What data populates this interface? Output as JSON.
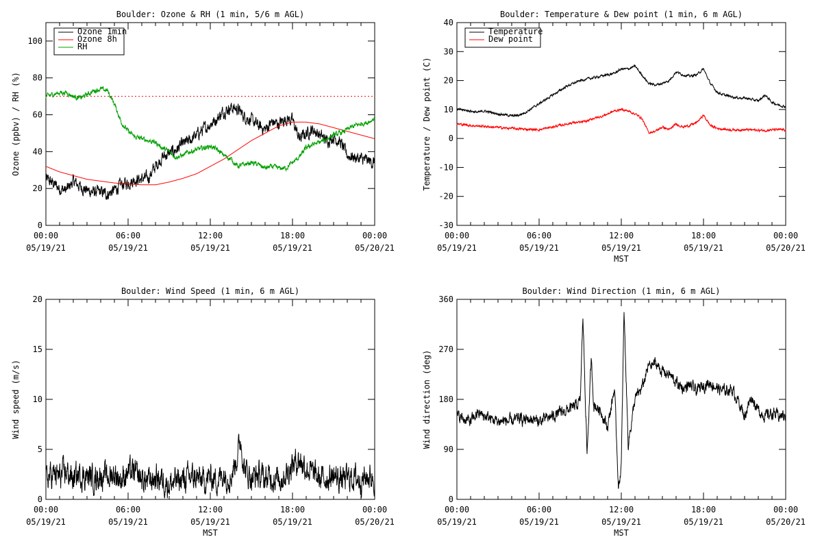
{
  "chart_data": [
    {
      "type": "line",
      "title": "Boulder: Ozone & RH (1 min, 5/6 m AGL)",
      "xlabel": "",
      "ylabel": "Ozone (ppbv) / RH (%)",
      "xlim": [
        0,
        24
      ],
      "ylim": [
        0,
        110
      ],
      "yticks": [
        0,
        20,
        40,
        60,
        80,
        100
      ],
      "xtick_hours": [
        0,
        6,
        12,
        18,
        24
      ],
      "xtick_labels": [
        [
          "00:00",
          "05/19/21"
        ],
        [
          "06:00",
          "05/19/21"
        ],
        [
          "12:00",
          "05/19/21"
        ],
        [
          "18:00",
          "05/19/21"
        ],
        [
          "00:00",
          "05/20/21"
        ]
      ],
      "legend_position": "top-left",
      "reference_line": {
        "y": 70,
        "color": "#ff0000",
        "style": "dotted"
      },
      "series": [
        {
          "name": "Ozone 1min",
          "color": "#000000",
          "noise": 2.5,
          "x": [
            0,
            0.5,
            1,
            1.5,
            2,
            2.5,
            3,
            3.5,
            4,
            4.5,
            5,
            5.5,
            6,
            6.5,
            7,
            7.5,
            8,
            8.5,
            9,
            9.5,
            10,
            10.5,
            11,
            11.5,
            12,
            12.5,
            13,
            13.5,
            14,
            14.5,
            15,
            15.5,
            16,
            16.5,
            17,
            17.5,
            18,
            18.5,
            19,
            19.5,
            20,
            20.5,
            21,
            21.5,
            22,
            22.5,
            23,
            23.5,
            24
          ],
          "values": [
            25,
            23,
            20,
            19,
            24,
            21,
            19,
            18,
            18,
            17,
            19,
            22,
            23,
            25,
            25,
            26,
            32,
            37,
            39,
            41,
            44,
            46,
            49,
            52,
            55,
            58,
            62,
            64,
            63,
            59,
            57,
            54,
            52,
            56,
            55,
            58,
            57,
            47,
            50,
            52,
            49,
            46,
            48,
            45,
            38,
            37,
            36,
            35,
            34
          ]
        },
        {
          "name": "Ozone 8h",
          "color": "#ff0000",
          "noise": 0,
          "x": [
            0,
            1,
            2,
            3,
            4,
            5,
            6,
            7,
            8,
            9,
            10,
            11,
            12,
            13,
            14,
            15,
            16,
            17,
            18,
            19,
            20,
            21,
            22,
            23,
            24
          ],
          "values": [
            32,
            29,
            27,
            25,
            24,
            23,
            22.5,
            22,
            22,
            23.5,
            25.5,
            28,
            32,
            36,
            41,
            46,
            50,
            54,
            56,
            56,
            55,
            53,
            51,
            49,
            47
          ]
        },
        {
          "name": "RH",
          "color": "#00a000",
          "noise": 1,
          "x": [
            0,
            0.5,
            1,
            1.5,
            2,
            2.5,
            3,
            3.5,
            4,
            4.5,
            5,
            5.5,
            6,
            6.5,
            7,
            7.5,
            8,
            8.5,
            9,
            9.5,
            10,
            10.5,
            11,
            11.5,
            12,
            12.5,
            13,
            13.5,
            14,
            14.5,
            15,
            15.5,
            16,
            16.5,
            17,
            17.5,
            18,
            18.5,
            19,
            19.5,
            20,
            20.5,
            21,
            21.5,
            22,
            22.5,
            23,
            23.5,
            24
          ],
          "values": [
            70,
            71,
            72,
            72,
            70,
            69,
            71,
            73,
            74,
            73,
            66,
            56,
            51,
            48,
            47,
            46,
            45,
            42,
            40,
            37,
            38,
            40,
            41,
            42,
            43,
            41,
            38,
            36,
            32,
            33,
            34,
            33,
            31,
            32,
            31,
            31,
            34,
            37,
            42,
            44,
            45,
            47,
            49,
            50,
            52,
            54,
            55,
            56,
            58
          ]
        }
      ]
    },
    {
      "type": "line",
      "title": "Boulder: Temperature & Dew point (1 min, 6 m AGL)",
      "xlabel": "MST",
      "ylabel": "Temperature / Dew point (C)",
      "xlim": [
        0,
        24
      ],
      "ylim": [
        -30,
        40
      ],
      "yticks": [
        -30,
        -20,
        -10,
        0,
        10,
        20,
        30,
        40
      ],
      "xtick_hours": [
        0,
        6,
        12,
        18,
        24
      ],
      "xtick_labels": [
        [
          "00:00",
          "05/19/21"
        ],
        [
          "06:00",
          "05/19/21"
        ],
        [
          "12:00",
          "05/19/21"
        ],
        [
          "18:00",
          "05/19/21"
        ],
        [
          "00:00",
          "05/20/21"
        ]
      ],
      "legend_position": "top-left",
      "series": [
        {
          "name": "Temperature",
          "color": "#000000",
          "noise": 0.3,
          "x": [
            0,
            0.5,
            1,
            1.5,
            2,
            2.5,
            3,
            3.5,
            4,
            4.5,
            5,
            5.5,
            6,
            6.5,
            7,
            7.5,
            8,
            8.5,
            9,
            9.5,
            10,
            10.5,
            11,
            11.5,
            12,
            12.5,
            13,
            13.5,
            14,
            14.5,
            15,
            15.5,
            16,
            16.5,
            17,
            17.5,
            18,
            18.5,
            19,
            19.5,
            20,
            20.5,
            21,
            21.5,
            22,
            22.5,
            23,
            23.5,
            24
          ],
          "values": [
            10,
            9.8,
            9.5,
            9,
            9.5,
            9,
            8.5,
            8.2,
            7.8,
            8,
            9,
            10.5,
            12,
            13.5,
            15,
            16.5,
            18,
            19,
            20,
            20.5,
            21,
            21.5,
            22,
            22.5,
            24,
            24,
            25,
            22,
            19,
            18.5,
            19,
            20,
            23,
            22,
            21.5,
            22,
            24,
            19,
            16,
            15,
            14.5,
            14,
            14,
            13.5,
            13,
            15,
            12.5,
            11.5,
            11
          ]
        },
        {
          "name": "Dew point",
          "color": "#ff0000",
          "noise": 0.3,
          "x": [
            0,
            0.5,
            1,
            1.5,
            2,
            2.5,
            3,
            3.5,
            4,
            4.5,
            5,
            5.5,
            6,
            6.5,
            7,
            7.5,
            8,
            8.5,
            9,
            9.5,
            10,
            10.5,
            11,
            11.5,
            12,
            12.5,
            13,
            13.5,
            14,
            14.5,
            15,
            15.5,
            16,
            16.5,
            17,
            17.5,
            18,
            18.5,
            19,
            19.5,
            20,
            20.5,
            21,
            21.5,
            22,
            22.5,
            23,
            23.5,
            24
          ],
          "values": [
            5,
            4.8,
            4.5,
            4.3,
            4.2,
            4,
            3.8,
            3.6,
            3.5,
            3.3,
            3.2,
            3.1,
            3,
            3.5,
            4,
            4.5,
            5,
            5.5,
            5.5,
            6,
            7,
            7.5,
            8.5,
            9.5,
            10,
            9.5,
            8.5,
            7,
            2,
            2.5,
            4,
            3,
            5,
            4,
            4.5,
            5.5,
            8,
            4.5,
            3.5,
            3.2,
            3,
            3,
            3,
            3,
            2.8,
            2.8,
            3,
            3,
            3
          ]
        }
      ]
    },
    {
      "type": "line",
      "title": "Boulder: Wind Speed (1 min, 6 m AGL)",
      "xlabel": "MST",
      "ylabel": "Wind speed (m/s)",
      "xlim": [
        0,
        24
      ],
      "ylim": [
        0,
        20
      ],
      "yticks": [
        0,
        5,
        10,
        15,
        20
      ],
      "xtick_hours": [
        0,
        6,
        12,
        18,
        24
      ],
      "xtick_labels": [
        [
          "00:00",
          "05/19/21"
        ],
        [
          "06:00",
          "05/19/21"
        ],
        [
          "12:00",
          "05/19/21"
        ],
        [
          "18:00",
          "05/19/21"
        ],
        [
          "00:00",
          "05/20/21"
        ]
      ],
      "series": [
        {
          "name": "",
          "color": "#000000",
          "noise": 1.0,
          "x": [
            0,
            0.5,
            1,
            1.5,
            2,
            2.5,
            3,
            3.5,
            4,
            4.5,
            5,
            5.5,
            6,
            6.5,
            7,
            7.5,
            8,
            8.5,
            9,
            9.5,
            10,
            10.5,
            11,
            11.5,
            12,
            12.5,
            13,
            13.5,
            14,
            14.2,
            14.5,
            15,
            15.5,
            16,
            16.5,
            17,
            17.5,
            18,
            18.5,
            19,
            19.5,
            20,
            20.5,
            21,
            21.5,
            22,
            22.5,
            23,
            23.5,
            24
          ],
          "values": [
            2,
            2.5,
            2.2,
            2.8,
            2,
            2.5,
            2.3,
            2.1,
            2.4,
            2.2,
            2.6,
            2,
            2.8,
            2.5,
            2,
            1.8,
            2.2,
            2,
            1.5,
            1.8,
            2,
            2.2,
            2.1,
            1.8,
            2.2,
            2,
            2.5,
            2.3,
            4.5,
            6,
            3,
            2.2,
            2.4,
            2,
            2.3,
            2,
            2.5,
            3.5,
            4,
            3.2,
            2.5,
            2,
            2.2,
            2.3,
            2,
            2.1,
            2.2,
            2,
            2.3,
            2.2
          ]
        }
      ]
    },
    {
      "type": "line",
      "title": "Boulder: Wind Direction (1 min, 6 m AGL)",
      "xlabel": "MST",
      "ylabel": "Wind direction (deg)",
      "xlim": [
        0,
        24
      ],
      "ylim": [
        0,
        360
      ],
      "yticks": [
        0,
        90,
        180,
        270,
        360
      ],
      "xtick_hours": [
        0,
        6,
        12,
        18,
        24
      ],
      "xtick_labels": [
        [
          "00:00",
          "05/19/21"
        ],
        [
          "06:00",
          "05/19/21"
        ],
        [
          "12:00",
          "05/19/21"
        ],
        [
          "18:00",
          "05/19/21"
        ],
        [
          "00:00",
          "05/20/21"
        ]
      ],
      "series": [
        {
          "name": "",
          "color": "#000000",
          "noise": 8,
          "x": [
            0,
            0.5,
            1,
            1.5,
            2,
            2.5,
            3,
            3.5,
            4,
            4.5,
            5,
            5.5,
            6,
            6.5,
            7,
            7.5,
            8,
            8.5,
            9,
            9.2,
            9.5,
            9.8,
            10,
            10.5,
            11,
            11.5,
            11.8,
            12,
            12.2,
            12.5,
            13,
            13.5,
            14,
            14.5,
            15,
            15.5,
            16,
            16.5,
            17,
            17.5,
            18,
            18.5,
            19,
            19.5,
            20,
            20.5,
            21,
            21.5,
            22,
            22.5,
            23,
            23.5,
            24
          ],
          "values": [
            150,
            145,
            140,
            155,
            150,
            145,
            140,
            142,
            140,
            145,
            143,
            145,
            140,
            145,
            150,
            155,
            160,
            165,
            175,
            330,
            80,
            250,
            170,
            160,
            130,
            200,
            20,
            60,
            340,
            100,
            180,
            200,
            240,
            245,
            230,
            225,
            210,
            200,
            205,
            195,
            205,
            210,
            200,
            195,
            200,
            180,
            150,
            185,
            160,
            150,
            155,
            150,
            150
          ]
        }
      ]
    }
  ]
}
